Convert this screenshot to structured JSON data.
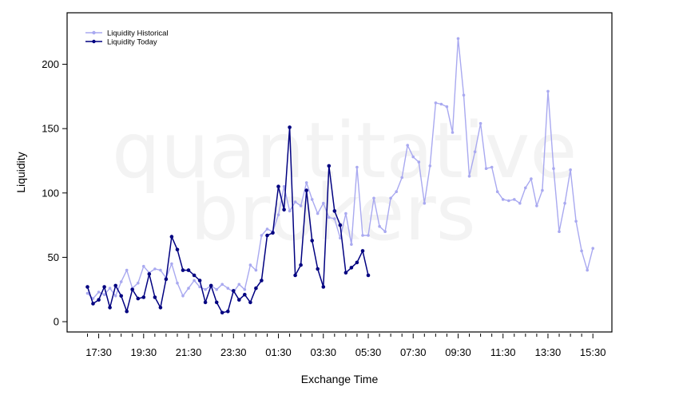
{
  "watermark": {
    "line1": "quantitative",
    "line2": "brokers"
  },
  "chart_data": {
    "type": "line",
    "xlabel": "Exchange Time",
    "ylabel": "Liquidity",
    "ylim": [
      -8,
      240
    ],
    "yticks": [
      0,
      50,
      100,
      150,
      200
    ],
    "xticks": [
      "17:30",
      "19:30",
      "21:30",
      "23:30",
      "01:30",
      "03:30",
      "05:30",
      "07:30",
      "09:30",
      "11:30",
      "13:30",
      "15:30"
    ],
    "x_start": "17:00",
    "x_step_minutes": 15,
    "grid": false,
    "legend_position": "top-left",
    "colors": {
      "historical": "#a9a9f0",
      "today": "#000080"
    },
    "series": [
      {
        "name": "Liquidity Historical",
        "key": "historical",
        "values": [
          22,
          18,
          23,
          21,
          26,
          20,
          31,
          40,
          26,
          30,
          43,
          38,
          41,
          40,
          34,
          45,
          30,
          20,
          26,
          32,
          27,
          25,
          28,
          25,
          29,
          26,
          23,
          29,
          25,
          44,
          40,
          67,
          72,
          70,
          83,
          105,
          86,
          93,
          90,
          108,
          95,
          84,
          92,
          81,
          80,
          65,
          84,
          60,
          120,
          67,
          67,
          96,
          74,
          70,
          96,
          101,
          112,
          137,
          128,
          124,
          92,
          121,
          170,
          169,
          167,
          147,
          220,
          176,
          113,
          132,
          154,
          119,
          120,
          101,
          95,
          94,
          95,
          92,
          104,
          111,
          90,
          102,
          179,
          119,
          70,
          92,
          118,
          78,
          55,
          40,
          57
        ]
      },
      {
        "name": "Liquidity Today",
        "key": "today",
        "values": [
          27,
          14,
          17,
          27,
          11,
          28,
          20,
          8,
          25,
          18,
          19,
          37,
          19,
          11,
          33,
          66,
          56,
          40,
          40,
          36,
          32,
          15,
          28,
          15,
          7,
          8,
          24,
          17,
          21,
          15,
          26,
          32,
          67,
          69,
          105,
          87,
          151,
          36,
          44,
          102,
          63,
          41,
          27,
          121,
          86,
          75,
          38,
          42,
          46,
          55,
          36
        ]
      }
    ]
  }
}
